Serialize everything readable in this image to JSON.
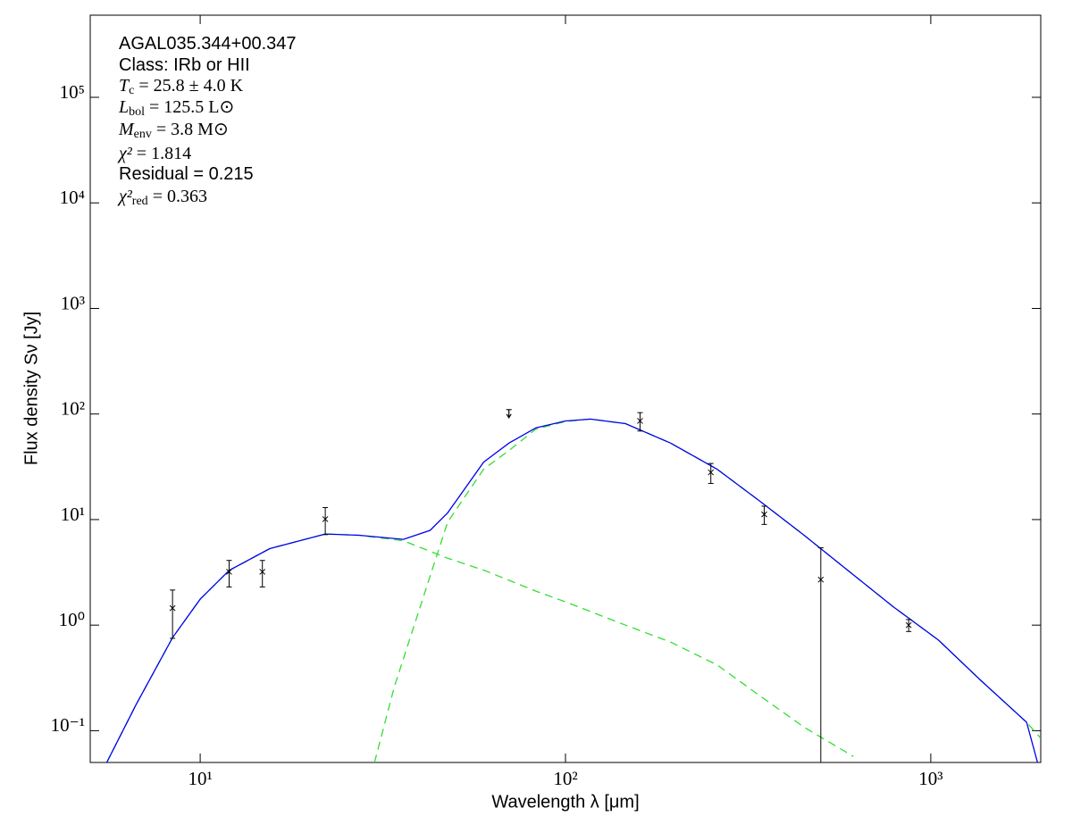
{
  "chart_data": {
    "type": "sed",
    "xlabel": "Wavelength λ [μm]",
    "ylabel": "Flux density Sν [Jy]",
    "xscale": "log",
    "yscale": "log",
    "xlim": [
      5,
      2000
    ],
    "ylim": [
      0.05,
      600000
    ],
    "xticks": [
      {
        "value": 10,
        "label": "10¹"
      },
      {
        "value": 100,
        "label": "10²"
      },
      {
        "value": 1000,
        "label": "10³"
      }
    ],
    "yticks": [
      {
        "value": 0.1,
        "label": "10⁻¹"
      },
      {
        "value": 1,
        "label": "10⁰"
      },
      {
        "value": 10,
        "label": "10¹"
      },
      {
        "value": 100,
        "label": "10²"
      },
      {
        "value": 1000,
        "label": "10³"
      },
      {
        "value": 10000,
        "label": "10⁴"
      },
      {
        "value": 100000,
        "label": "10⁵"
      }
    ],
    "annotations": [
      {
        "text": "AGAL035.344+00.347"
      },
      {
        "text": "Class: IRb or HII"
      },
      {
        "symbol": "T",
        "sub": "c",
        "text": " = 25.8 ± 4.0 K"
      },
      {
        "symbol": "L",
        "sub": "bol",
        "text": " = 125.5 L⊙"
      },
      {
        "symbol": "M",
        "sub": "env",
        "text": " = 3.8 M⊙"
      },
      {
        "symbol": "χ²",
        "text": " = 1.814"
      },
      {
        "text": "Residual = 0.215"
      },
      {
        "symbol": "χ²",
        "sub": "red",
        "text": " = 0.363"
      }
    ],
    "series": [
      {
        "color": "#33dd33",
        "dashed": true,
        "x": [
          5.55,
          6.68,
          8.4,
          10,
          12,
          15.5,
          22,
          27.2,
          36,
          42.6,
          47.6,
          60,
          83,
          100,
          146,
          194,
          260,
          340,
          450,
          614
        ],
        "values": [
          0.05,
          0.177,
          0.76,
          1.76,
          3.3,
          5.3,
          7.3,
          7.1,
          6.3,
          5.0,
          4.3,
          3.3,
          2.1,
          1.66,
          1.0,
          0.69,
          0.42,
          0.215,
          0.108,
          0.057
        ]
      },
      {
        "color": "#33dd33",
        "dashed": true,
        "x": [
          30,
          34,
          42.3,
          47.6,
          59.7,
          70,
          83,
          100,
          117,
          146,
          194,
          260,
          340,
          450,
          593,
          788,
          1050,
          1370,
          1830,
          2000
        ],
        "values": [
          0.05,
          0.26,
          2.7,
          9.5,
          30,
          45,
          72,
          85,
          89.5,
          81,
          53,
          30,
          15,
          7.1,
          3.3,
          1.5,
          0.72,
          0.3,
          0.12,
          0.085
        ]
      },
      {
        "color": "#0000ee",
        "dashed": false,
        "x": [
          5.55,
          6.68,
          8.4,
          10,
          12,
          15.5,
          22,
          27.2,
          36,
          42.6,
          47.6,
          59.7,
          70,
          83,
          100,
          117,
          146,
          194,
          260,
          340,
          450,
          593,
          788,
          1050,
          1370,
          1830,
          1960
        ],
        "values": [
          0.05,
          0.177,
          0.76,
          1.76,
          3.3,
          5.3,
          7.3,
          7.1,
          6.5,
          7.9,
          11.6,
          35,
          53,
          74,
          86,
          89.5,
          81,
          53,
          30,
          15,
          7.1,
          3.3,
          1.5,
          0.72,
          0.3,
          0.12,
          0.05
        ]
      }
    ],
    "points": {
      "color": "#000000",
      "x": [
        8.4,
        12,
        14.8,
        22,
        160,
        250,
        350,
        500,
        870
      ],
      "values": [
        1.45,
        3.2,
        3.2,
        10.1,
        86,
        28,
        11.2,
        2.7,
        1.0
      ],
      "errors": [
        0.7,
        0.9,
        0.9,
        2.9,
        17,
        6,
        2.2,
        2.7,
        0.13
      ]
    },
    "upper_limits": {
      "color": "#000000",
      "x": [
        70
      ],
      "values": [
        110
      ]
    }
  }
}
